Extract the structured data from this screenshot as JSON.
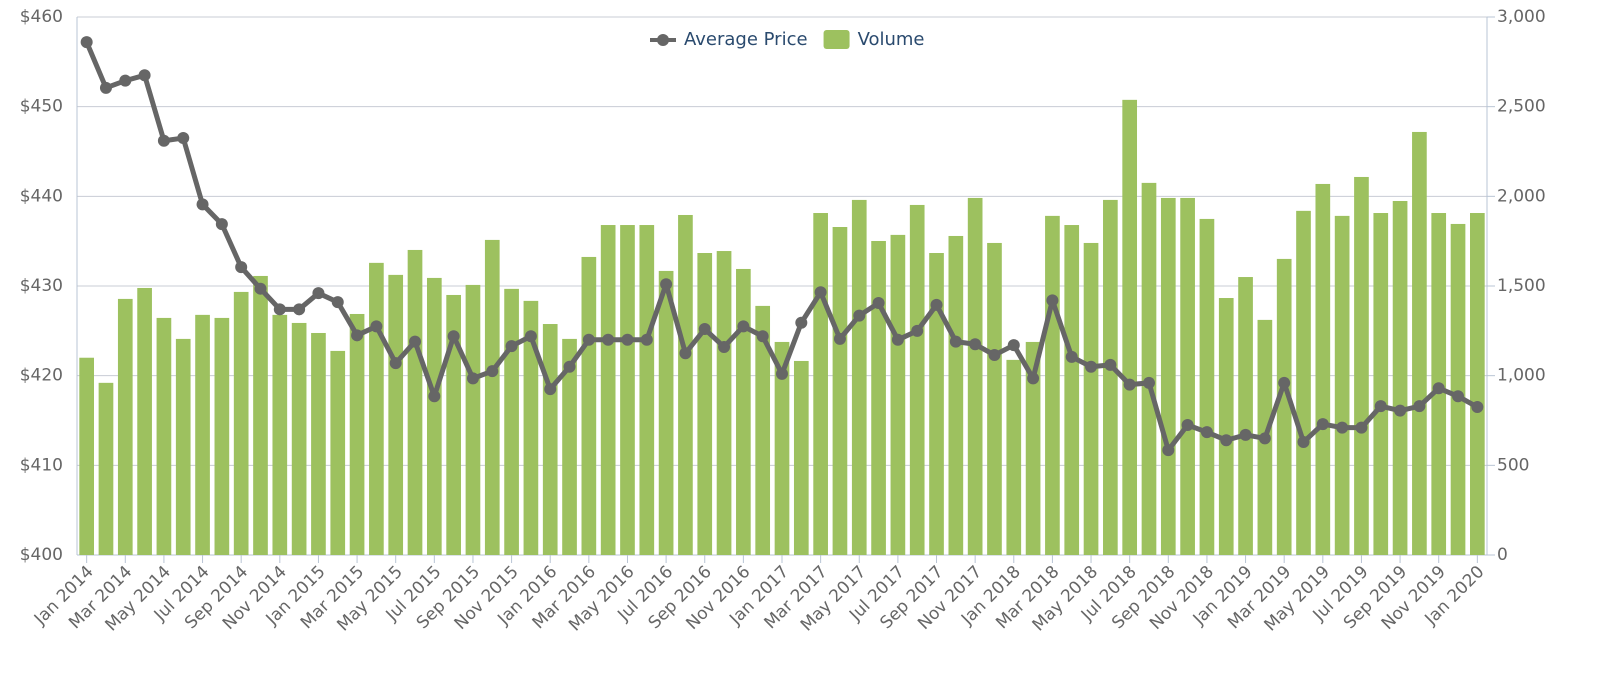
{
  "chart_data": {
    "type": "bar-line",
    "categories": [
      "Jan 2014",
      null,
      "Mar 2014",
      null,
      "May 2014",
      null,
      "Jul 2014",
      null,
      "Sep 2014",
      null,
      "Nov 2014",
      null,
      "Jan 2015",
      null,
      "Mar 2015",
      null,
      "May 2015",
      null,
      "Jul 2015",
      null,
      "Sep 2015",
      null,
      "Nov 2015",
      null,
      "Jan 2016",
      null,
      "Mar 2016",
      null,
      "May 2016",
      null,
      "Jul 2016",
      null,
      "Sep 2016",
      null,
      "Nov 2016",
      null,
      "Jan 2017",
      null,
      "Mar 2017",
      null,
      "May 2017",
      null,
      "Jul 2017",
      null,
      "Sep 2017",
      null,
      "Nov 2017",
      null,
      "Jan 2018",
      null,
      "Mar 2018",
      null,
      "May 2018",
      null,
      "Jul 2018",
      null,
      "Sep 2018",
      null,
      "Nov 2018",
      null,
      "Jan 2019",
      null,
      "Mar 2019",
      null,
      "May 2019",
      null,
      "Jul 2019",
      null,
      "Sep 2019",
      null,
      "Nov 2019",
      null,
      "Jan 2020"
    ],
    "series": [
      {
        "name": "Average Price",
        "type": "line",
        "axis": "y",
        "color": "#666666",
        "values": [
          457.2,
          452.1,
          452.9,
          453.5,
          446.2,
          446.5,
          439.1,
          436.9,
          432.1,
          429.7,
          427.4,
          427.4,
          429.2,
          428.2,
          424.5,
          425.5,
          421.4,
          423.8,
          417.7,
          424.4,
          419.7,
          420.5,
          423.3,
          424.4,
          418.5,
          421.0,
          424.0,
          424.0,
          424.0,
          424.0,
          430.2,
          422.5,
          425.2,
          423.2,
          425.5,
          424.4,
          420.2,
          425.9,
          429.3,
          424.1,
          426.7,
          428.1,
          424.0,
          425.0,
          427.9,
          423.8,
          423.5,
          422.3,
          423.4,
          419.7,
          428.4,
          422.1,
          421.0,
          421.2,
          419.0,
          419.2,
          411.7,
          414.5,
          413.7,
          412.8,
          413.4,
          413.0,
          419.2,
          412.6,
          414.6,
          414.2,
          414.2,
          416.6,
          416.1,
          416.6,
          418.6,
          417.7,
          416.5
        ]
      },
      {
        "name": "Volume",
        "type": "bar",
        "axis": "y2",
        "color": "#9dc15f",
        "values": [
          1100,
          960,
          1428,
          1489,
          1322,
          1205,
          1339,
          1322,
          1467,
          1556,
          1339,
          1294,
          1238,
          1138,
          1344,
          1629,
          1562,
          1701,
          1545,
          1450,
          1506,
          1757,
          1484,
          1417,
          1288,
          1205,
          1662,
          1840,
          1840,
          1840,
          1584,
          1896,
          1684,
          1695,
          1595,
          1389,
          1188,
          1082,
          1907,
          1829,
          1980,
          1751,
          1785,
          1952,
          1684,
          1779,
          1991,
          1740,
          1088,
          1188,
          1891,
          1840,
          1740,
          1980,
          2538,
          2075,
          1991,
          1991,
          1874,
          1433,
          1550,
          1311,
          1651,
          1919,
          2069,
          1891,
          2108,
          1907,
          1974,
          2359,
          1907,
          1846,
          1907
        ]
      }
    ],
    "ylim": [
      400,
      460
    ],
    "yticks": [
      {
        "value": 400,
        "label": "$400"
      },
      {
        "value": 410,
        "label": "$410"
      },
      {
        "value": 420,
        "label": "$420"
      },
      {
        "value": 430,
        "label": "$430"
      },
      {
        "value": 440,
        "label": "$440"
      },
      {
        "value": 450,
        "label": "$450"
      },
      {
        "value": 460,
        "label": "$460"
      }
    ],
    "y2lim": [
      0,
      3000
    ],
    "y2ticks": [
      0,
      500,
      {
        "value": 1000,
        "label": "1,000"
      },
      {
        "value": 1500,
        "label": "1,500"
      },
      {
        "value": 2000,
        "label": "2,000"
      },
      {
        "value": 2500,
        "label": "2,500"
      },
      {
        "value": 3000,
        "label": "3,000"
      }
    ],
    "grid": true,
    "legend": "top"
  }
}
